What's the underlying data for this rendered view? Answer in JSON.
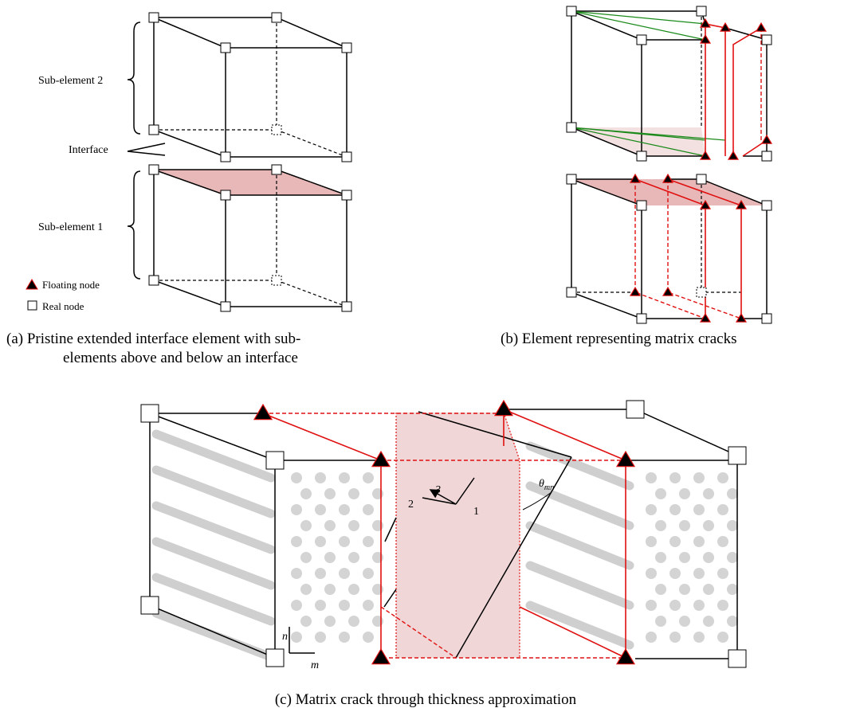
{
  "panel_a": {
    "labels": {
      "sub_element_2": "Sub-element 2",
      "interface": "Interface",
      "sub_element_1": "Sub-element 1"
    },
    "legend": {
      "floating_node": "Floating node",
      "real_node": "Real node"
    },
    "caption": [
      "(a)   Pristine extended interface element with sub-",
      "elements above and  below an interface"
    ]
  },
  "panel_b": {
    "caption": "(b) Element representing matrix cracks"
  },
  "panel_c": {
    "axes": {
      "n": "n",
      "m": "m",
      "one": "1",
      "two": "2",
      "three": "3"
    },
    "angle": {
      "symbol": "θ",
      "subscript": "mn"
    },
    "caption": "(c) Matrix crack through thickness approximation"
  }
}
